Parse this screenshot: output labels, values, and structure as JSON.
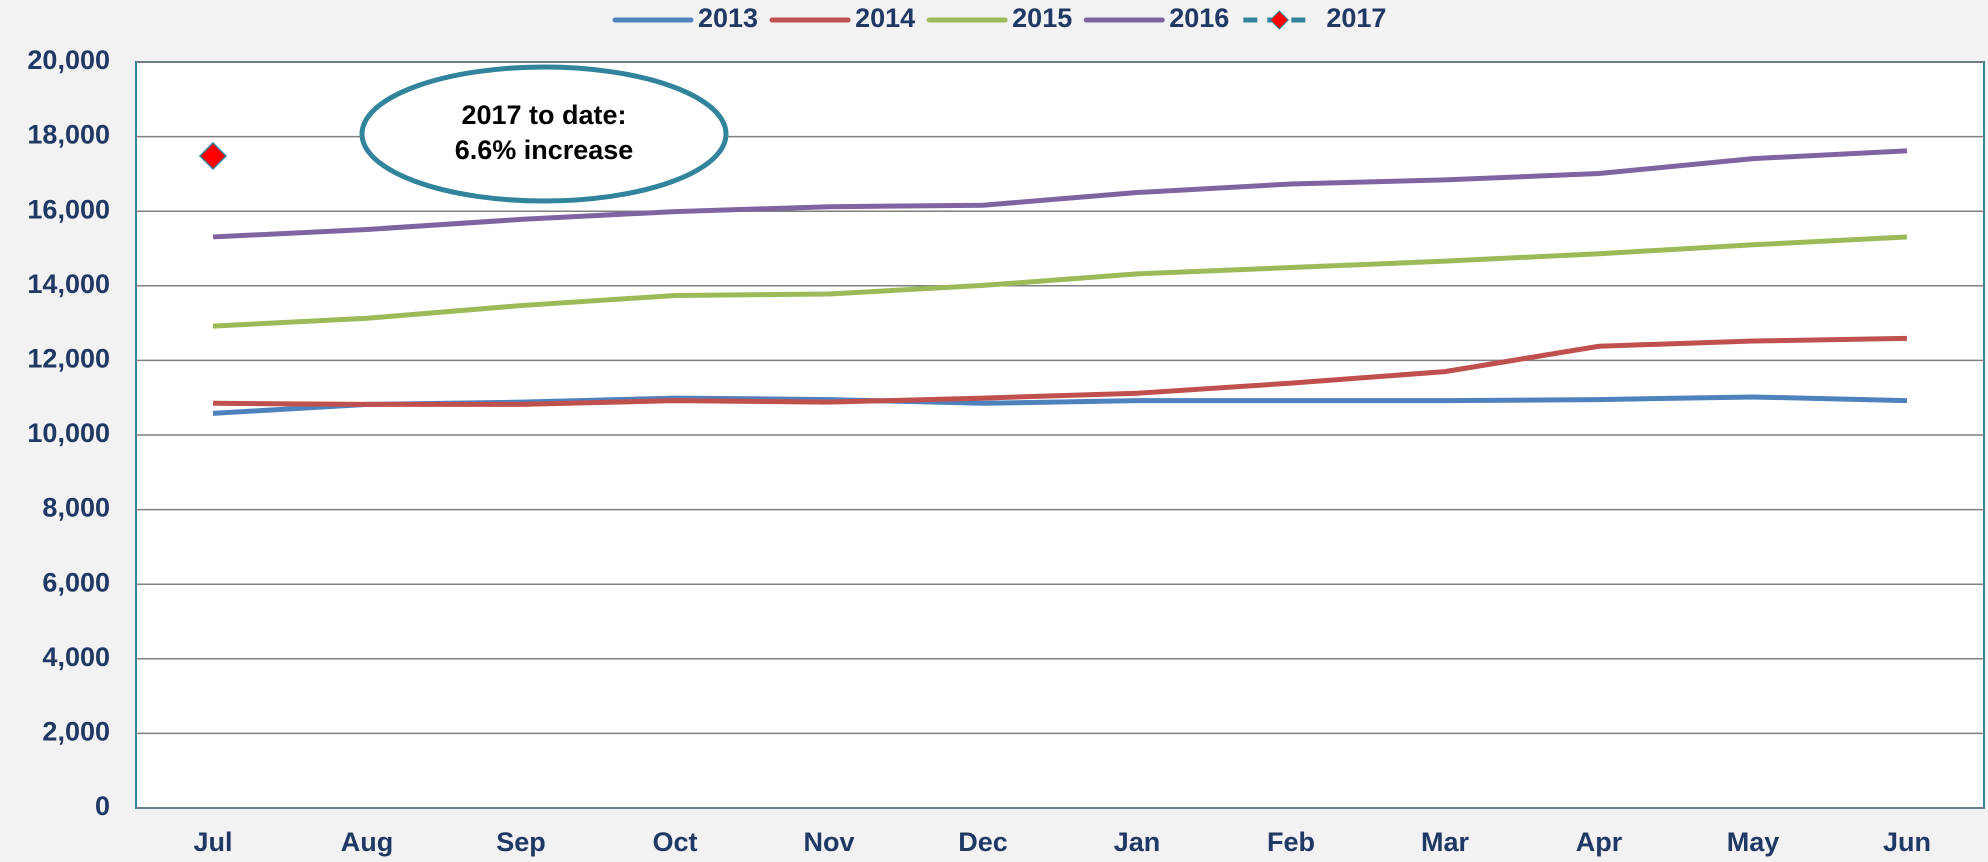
{
  "chart_data": {
    "type": "line",
    "annotation": [
      "2017 to date:",
      "6.6% increase"
    ],
    "categories": [
      "Jul",
      "Aug",
      "Sep",
      "Oct",
      "Nov",
      "Dec",
      "Jan",
      "Feb",
      "Mar",
      "Apr",
      "May",
      "Jun"
    ],
    "series": [
      {
        "name": "2013",
        "color": "#4f81bd",
        "label_color": "#1f3864",
        "values": [
          10580,
          10820,
          10880,
          10990,
          10950,
          10850,
          10920,
          10920,
          10920,
          10950,
          11020,
          10920
        ]
      },
      {
        "name": "2014",
        "color": "#c0504d",
        "label_color": "#c0143c",
        "values": [
          10850,
          10820,
          10820,
          10920,
          10880,
          10990,
          11120,
          11390,
          11700,
          12380,
          12520,
          12590
        ]
      },
      {
        "name": "2015",
        "color": "#9bbb59",
        "label_color": "#4f6228",
        "values": [
          12920,
          13130,
          13470,
          13740,
          13780,
          14010,
          14320,
          14490,
          14660,
          14860,
          15100,
          15310
        ]
      },
      {
        "name": "2016",
        "color": "#8064a2",
        "label_color": "#604a7b",
        "values": [
          15310,
          15510,
          15780,
          15990,
          16120,
          16160,
          16500,
          16730,
          16840,
          17010,
          17410,
          17620
        ]
      },
      {
        "name": "2017",
        "color": "#31849b",
        "marker_color": "#ff0000",
        "label_color": "#ff0000",
        "values": [
          17480,
          null,
          null,
          null,
          null,
          null,
          null,
          null,
          null,
          null,
          null,
          null
        ]
      }
    ],
    "ylim": [
      0,
      20000
    ],
    "yticks": [
      0,
      {
        "value": 2000,
        "label": "2,000"
      },
      {
        "value": 4000,
        "label": "4,000"
      },
      {
        "value": 6000,
        "label": "6,000"
      },
      {
        "value": 8000,
        "label": "8,000"
      },
      {
        "value": 10000,
        "label": "10,000"
      },
      {
        "value": 12000,
        "label": "12,000"
      },
      {
        "value": 14000,
        "label": "14,000"
      },
      {
        "value": 16000,
        "label": "16,000"
      },
      {
        "value": 18000,
        "label": "18,000"
      },
      {
        "value": 20000,
        "label": "20,000"
      }
    ],
    "grid": true,
    "legend": "top"
  }
}
